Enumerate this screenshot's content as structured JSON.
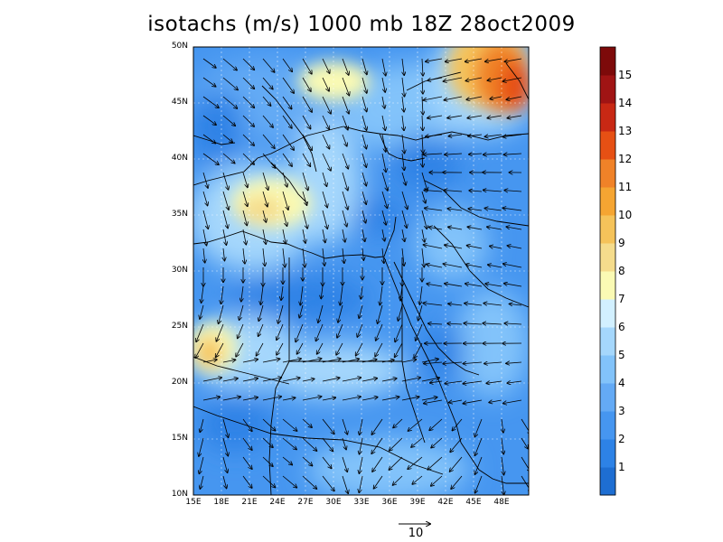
{
  "title": "isotachs (m/s) 1000 mb 18Z 28oct2009",
  "lat_labels": [
    "50N",
    "45N",
    "40N",
    "35N",
    "30N",
    "25N",
    "20N",
    "15N",
    "10N"
  ],
  "lon_labels": [
    "15E",
    "18E",
    "21E",
    "24E",
    "27E",
    "30E",
    "33E",
    "36E",
    "39E",
    "42E",
    "45E",
    "48E"
  ],
  "colorbar": {
    "labels": [
      "1",
      "2",
      "3",
      "4",
      "5",
      "6",
      "7",
      "8",
      "9",
      "10",
      "11",
      "12",
      "13",
      "14",
      "15"
    ],
    "colors": [
      "#1e6ed2",
      "#2d82e6",
      "#4696f0",
      "#64aaf5",
      "#82c3fa",
      "#a5d7fc",
      "#d2f0ff",
      "#fafab4",
      "#f5dc8c",
      "#f5c35a",
      "#f5a532",
      "#f08228",
      "#e65014",
      "#c82814",
      "#a01414",
      "#7d0a0a"
    ]
  },
  "ref_vector_label": "10",
  "background": "#ffffff"
}
